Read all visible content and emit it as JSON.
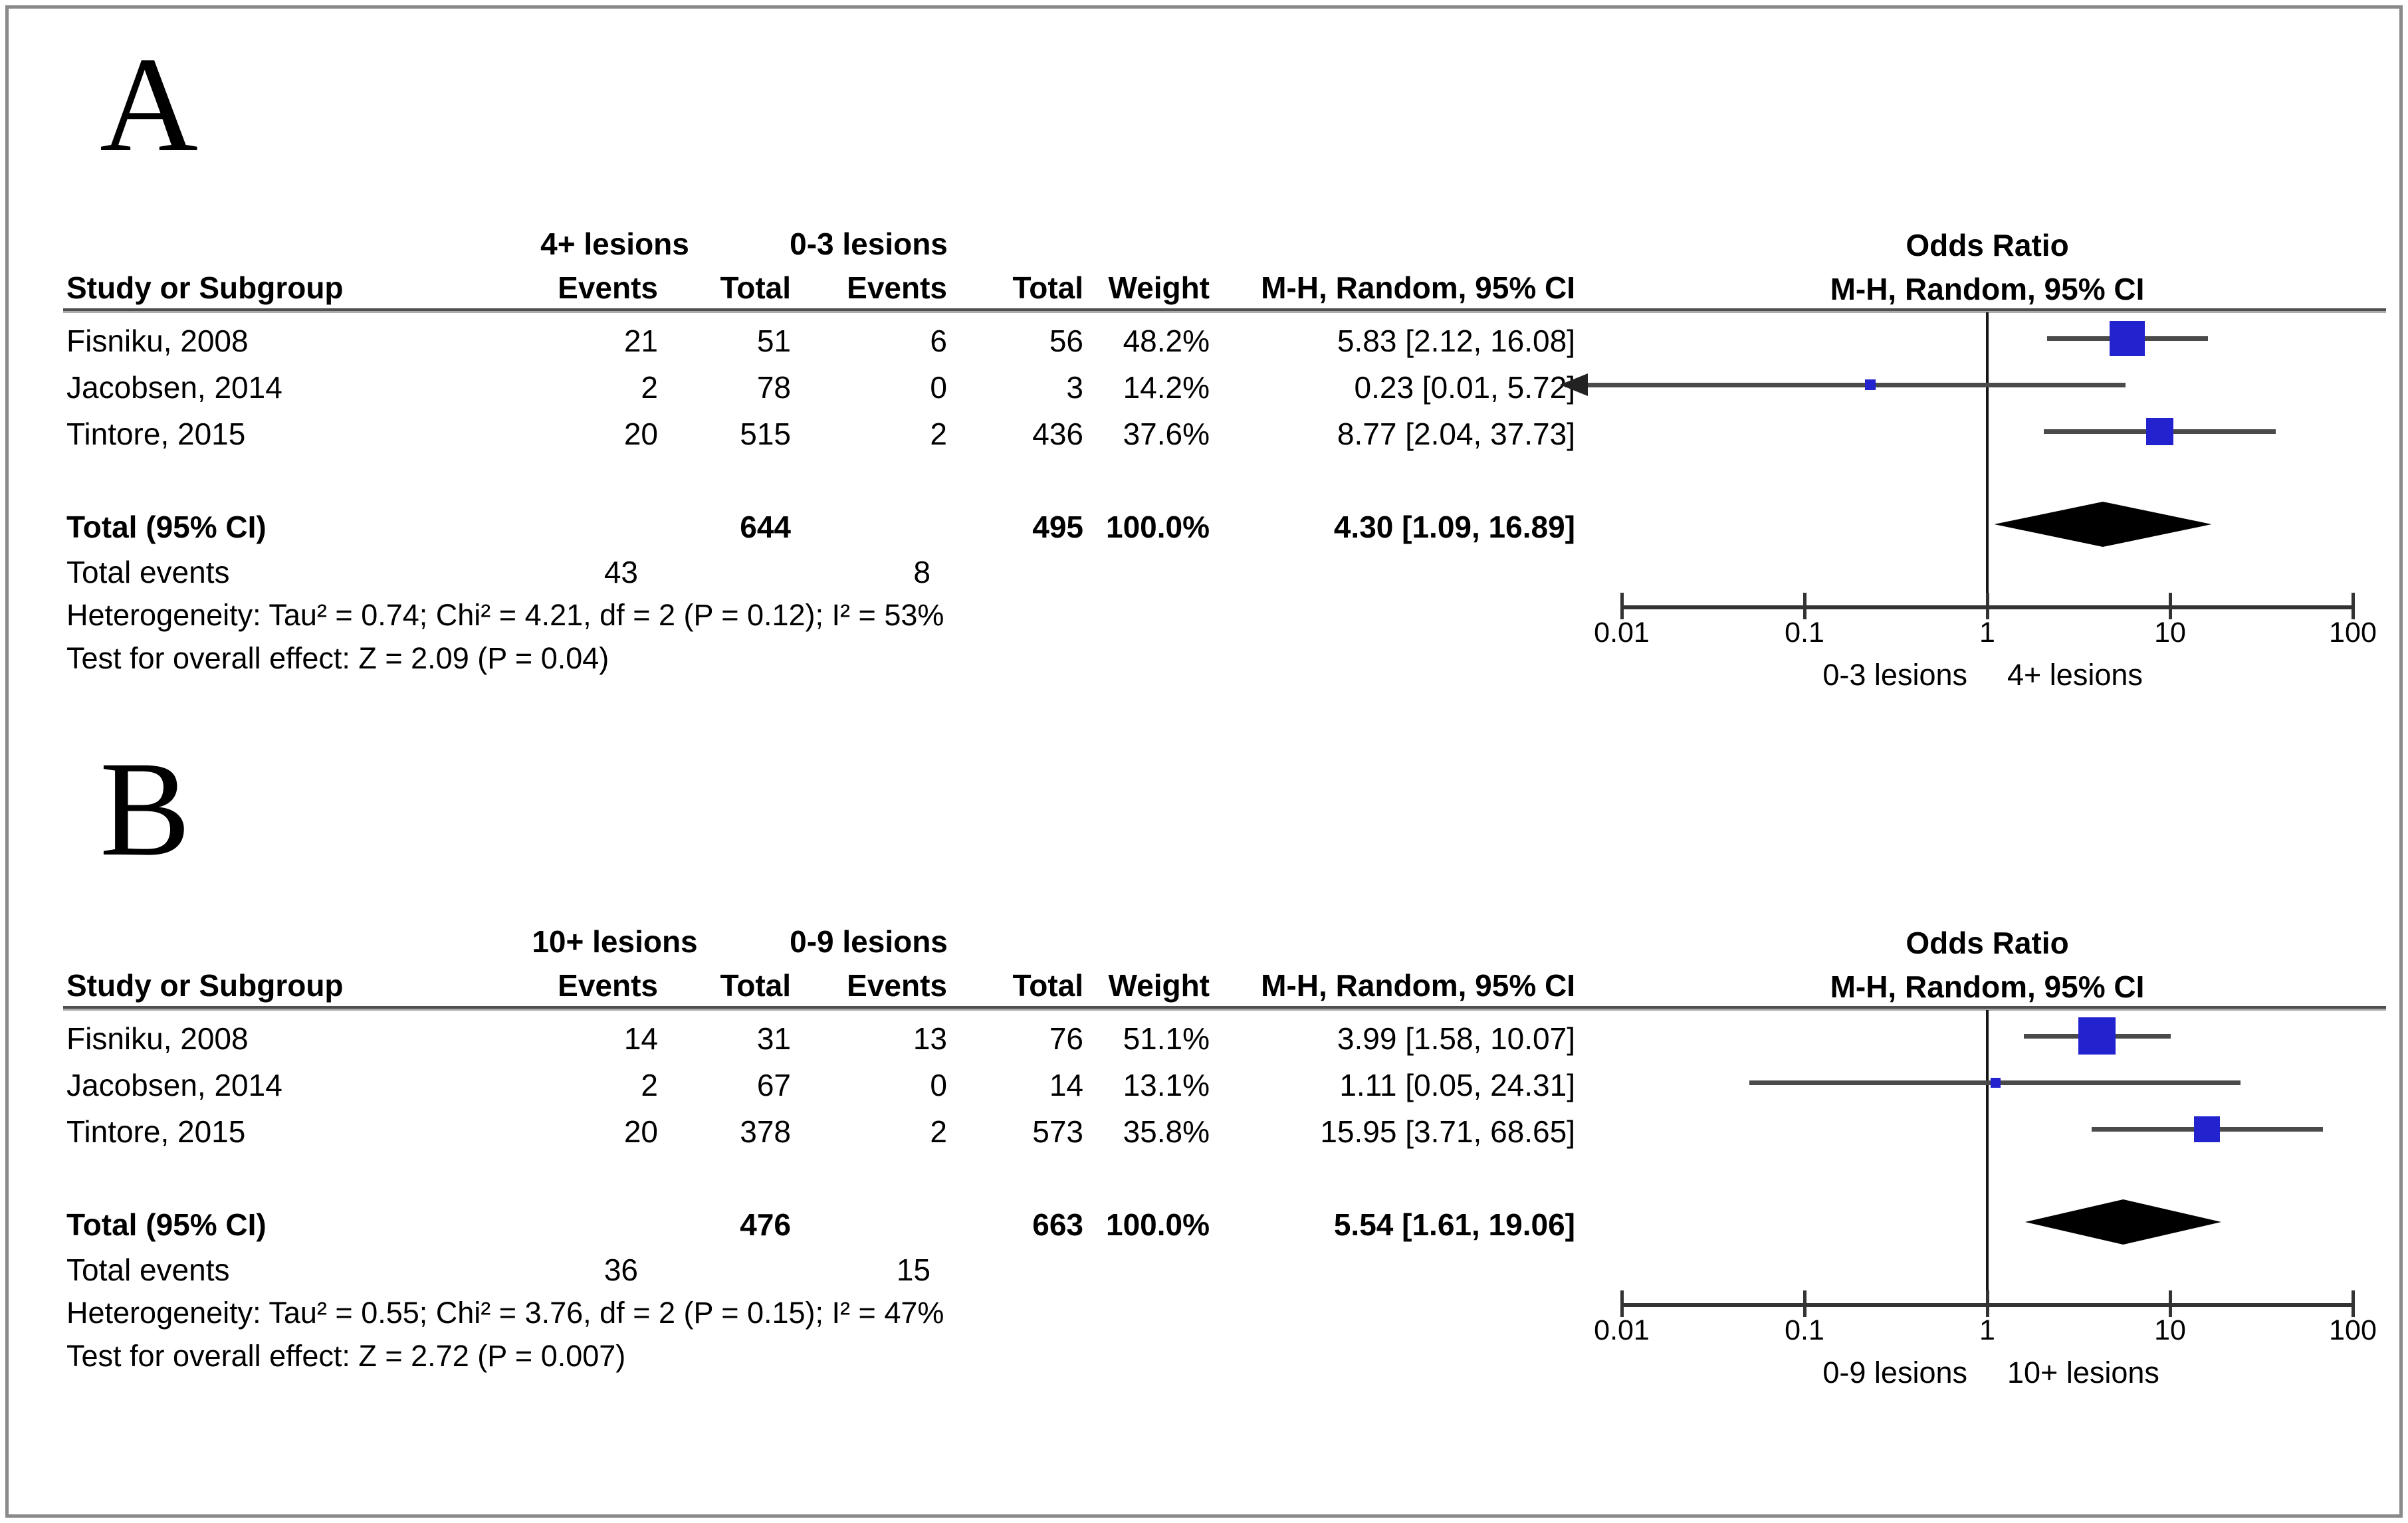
{
  "chart_data": [
    {
      "type": "scatter",
      "subtype": "forest-plot",
      "panel_label": "A",
      "header": {
        "study_col": "Study or Subgroup",
        "group1_label": "4+ lesions",
        "group2_label": "0-3 lesions",
        "events_col": "Events",
        "total_col": "Total",
        "weight_col": "Weight",
        "or_title": "Odds Ratio",
        "or_method": "M-H, Random, 95% CI"
      },
      "studies": [
        {
          "name": "Fisniku, 2008",
          "events1": "21",
          "total1": "51",
          "events2": "6",
          "total2": "56",
          "weight": "48.2%",
          "weight_pct": 48.2,
          "or_ci": "5.83 [2.12, 16.08]",
          "or": 5.83,
          "ci_low": 2.12,
          "ci_high": 16.08,
          "arrow_low": false
        },
        {
          "name": "Jacobsen, 2014",
          "events1": "2",
          "total1": "78",
          "events2": "0",
          "total2": "3",
          "weight": "14.2%",
          "weight_pct": 14.2,
          "or_ci": "0.23 [0.01, 5.72]",
          "or": 0.23,
          "ci_low": 0.01,
          "ci_high": 5.72,
          "arrow_low": true
        },
        {
          "name": "Tintore, 2015",
          "events1": "20",
          "total1": "515",
          "events2": "2",
          "total2": "436",
          "weight": "37.6%",
          "weight_pct": 37.6,
          "or_ci": "8.77 [2.04, 37.73]",
          "or": 8.77,
          "ci_low": 2.04,
          "ci_high": 37.73,
          "arrow_low": false
        }
      ],
      "total": {
        "label": "Total (95% CI)",
        "total1": "644",
        "total2": "495",
        "weight": "100.0%",
        "or_ci": "4.30 [1.09, 16.89]",
        "or": 4.3,
        "ci_low": 1.09,
        "ci_high": 16.89
      },
      "total_events": {
        "label": "Total events",
        "events1": "43",
        "events2": "8"
      },
      "heterogeneity": "Heterogeneity: Tau² = 0.74; Chi² = 4.21, df = 2 (P = 0.12); I² = 53%",
      "overall_effect": "Test for overall effect: Z = 2.09 (P = 0.04)",
      "axis": {
        "scale": "log",
        "min": 0.01,
        "max": 100,
        "ticks": [
          0.01,
          0.1,
          1,
          10,
          100
        ],
        "tick_labels": [
          "0.01",
          "0.1",
          "1",
          "10",
          "100"
        ],
        "left_label": "0-3 lesions",
        "right_label": "4+ lesions"
      },
      "colors": {
        "marker": "#2222cf",
        "diamond": "#000000",
        "ci_line": "#4a4a4a"
      }
    },
    {
      "type": "scatter",
      "subtype": "forest-plot",
      "panel_label": "B",
      "header": {
        "study_col": "Study or Subgroup",
        "group1_label": "10+ lesions",
        "group2_label": "0-9 lesions",
        "events_col": "Events",
        "total_col": "Total",
        "weight_col": "Weight",
        "or_title": "Odds Ratio",
        "or_method": "M-H, Random, 95% CI"
      },
      "studies": [
        {
          "name": "Fisniku, 2008",
          "events1": "14",
          "total1": "31",
          "events2": "13",
          "total2": "76",
          "weight": "51.1%",
          "weight_pct": 51.1,
          "or_ci": "3.99 [1.58, 10.07]",
          "or": 3.99,
          "ci_low": 1.58,
          "ci_high": 10.07,
          "arrow_low": false
        },
        {
          "name": "Jacobsen, 2014",
          "events1": "2",
          "total1": "67",
          "events2": "0",
          "total2": "14",
          "weight": "13.1%",
          "weight_pct": 13.1,
          "or_ci": "1.11 [0.05, 24.31]",
          "or": 1.11,
          "ci_low": 0.05,
          "ci_high": 24.31,
          "arrow_low": false
        },
        {
          "name": "Tintore, 2015",
          "events1": "20",
          "total1": "378",
          "events2": "2",
          "total2": "573",
          "weight": "35.8%",
          "weight_pct": 35.8,
          "or_ci": "15.95 [3.71, 68.65]",
          "or": 15.95,
          "ci_low": 3.71,
          "ci_high": 68.65,
          "arrow_low": false
        }
      ],
      "total": {
        "label": "Total (95% CI)",
        "total1": "476",
        "total2": "663",
        "weight": "100.0%",
        "or_ci": "5.54 [1.61, 19.06]",
        "or": 5.54,
        "ci_low": 1.61,
        "ci_high": 19.06
      },
      "total_events": {
        "label": "Total events",
        "events1": "36",
        "events2": "15"
      },
      "heterogeneity": "Heterogeneity: Tau² = 0.55; Chi² = 3.76, df = 2 (P = 0.15); I² = 47%",
      "overall_effect": "Test for overall effect: Z = 2.72 (P = 0.007)",
      "axis": {
        "scale": "log",
        "min": 0.01,
        "max": 100,
        "ticks": [
          0.01,
          0.1,
          1,
          10,
          100
        ],
        "tick_labels": [
          "0.01",
          "0.1",
          "1",
          "10",
          "100"
        ],
        "left_label": "0-9 lesions",
        "right_label": "10+ lesions"
      },
      "colors": {
        "marker": "#2222cf",
        "diamond": "#000000",
        "ci_line": "#4a4a4a"
      }
    }
  ]
}
